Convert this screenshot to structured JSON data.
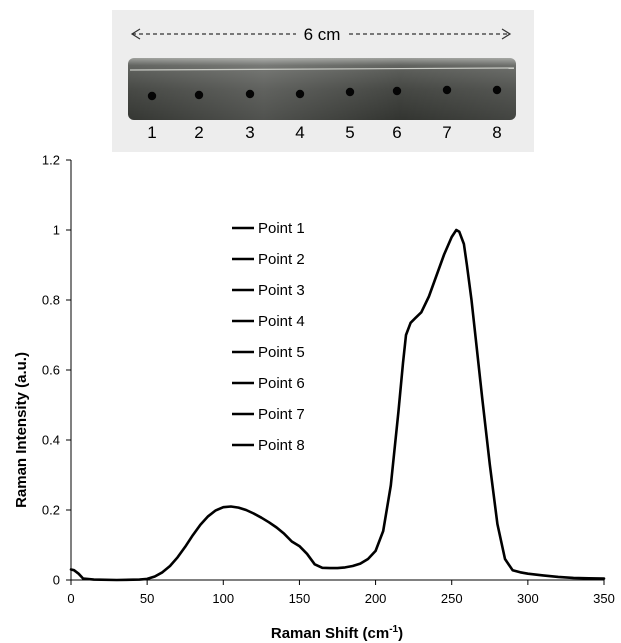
{
  "photo": {
    "length_label": "6 cm",
    "point_labels": [
      "1",
      "2",
      "3",
      "4",
      "5",
      "6",
      "7",
      "8"
    ]
  },
  "chart_data": {
    "type": "line",
    "title": "",
    "xlabel": "Raman Shift (cm",
    "xlabel_sup": "-1",
    "xlabel_end": ")",
    "ylabel": "Raman Intensity (a.u.)",
    "xlim": [
      0,
      350
    ],
    "ylim": [
      0,
      1.2
    ],
    "xticks": [
      0,
      50,
      100,
      150,
      200,
      250,
      300,
      350
    ],
    "yticks": [
      0,
      0.2,
      0.4,
      0.6,
      0.8,
      1,
      1.2
    ],
    "grid": false,
    "legend_position": "upper-left-inside",
    "legend": [
      "Point 1",
      "Point 2",
      "Point 3",
      "Point 4",
      "Point 5",
      "Point 6",
      "Point 7",
      "Point 8"
    ],
    "line_color": "#000000",
    "x": [
      0,
      2,
      5,
      8,
      15,
      30,
      45,
      50,
      55,
      60,
      65,
      70,
      75,
      80,
      85,
      90,
      95,
      100,
      105,
      110,
      115,
      120,
      125,
      130,
      135,
      140,
      145,
      150,
      155,
      160,
      165,
      170,
      175,
      180,
      185,
      190,
      195,
      200,
      205,
      210,
      215,
      218,
      220,
      223,
      226,
      230,
      235,
      240,
      245,
      250,
      253,
      255,
      258,
      260,
      263,
      266,
      270,
      275,
      280,
      285,
      290,
      295,
      300,
      310,
      320,
      330,
      340,
      350
    ],
    "y": [
      0.03,
      0.028,
      0.018,
      0.004,
      0.001,
      0.0,
      0.001,
      0.003,
      0.01,
      0.022,
      0.04,
      0.065,
      0.095,
      0.128,
      0.158,
      0.182,
      0.199,
      0.208,
      0.21,
      0.207,
      0.2,
      0.19,
      0.178,
      0.165,
      0.15,
      0.132,
      0.11,
      0.097,
      0.075,
      0.045,
      0.035,
      0.034,
      0.034,
      0.036,
      0.04,
      0.047,
      0.06,
      0.083,
      0.14,
      0.27,
      0.48,
      0.62,
      0.7,
      0.735,
      0.748,
      0.765,
      0.81,
      0.87,
      0.93,
      0.98,
      1.0,
      0.995,
      0.96,
      0.9,
      0.8,
      0.68,
      0.52,
      0.33,
      0.16,
      0.06,
      0.028,
      0.022,
      0.018,
      0.013,
      0.009,
      0.006,
      0.005,
      0.004
    ]
  }
}
